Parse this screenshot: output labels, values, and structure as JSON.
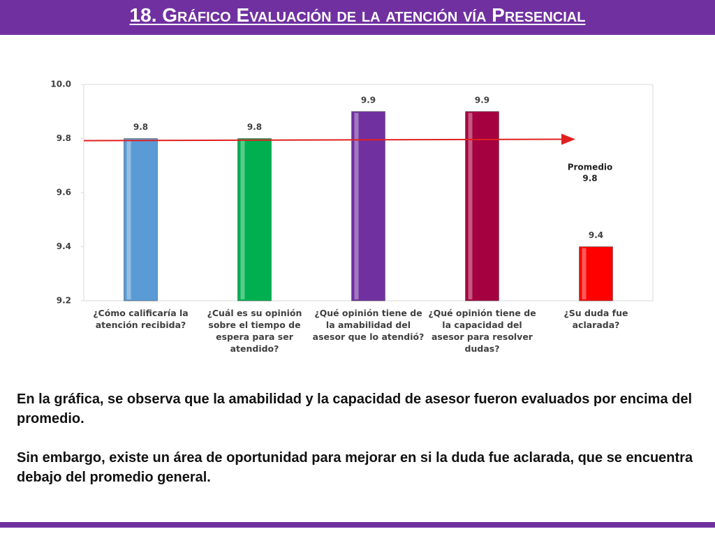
{
  "title": "18. Gráfico Evaluación de la atención vía Presencial",
  "chart_data": {
    "type": "bar",
    "categories": [
      "¿Cómo calificaría la atención recibida?",
      "¿Cuál es su opinión sobre el tiempo de espera para ser atendido?",
      "¿Qué opinión tiene de la amabilidad del asesor que lo atendió?",
      "¿Qué opinión tiene de la capacidad del asesor para resolver dudas?",
      "¿Su duda fue aclarada?"
    ],
    "values": [
      9.8,
      9.8,
      9.9,
      9.9,
      9.4
    ],
    "colors": [
      "#5b9bd5",
      "#00b050",
      "#7030a0",
      "#a50040",
      "#ff0000"
    ],
    "ylim": [
      9.2,
      10.0
    ],
    "yticks": [
      9.2,
      9.4,
      9.6,
      9.8,
      {
        "value": 10.0,
        "label": "10.0"
      }
    ],
    "average": {
      "label": "Promedio",
      "value": 9.8,
      "color": "#e02020"
    }
  },
  "body": {
    "paragraphs": [
      "En la gráfica, se observa que la amabilidad y la capacidad de asesor fueron evaluados por encima del promedio.",
      "Sin embargo, existe un área de oportunidad para mejorar en si la duda fue aclarada, que se encuentra debajo del  promedio general."
    ]
  }
}
